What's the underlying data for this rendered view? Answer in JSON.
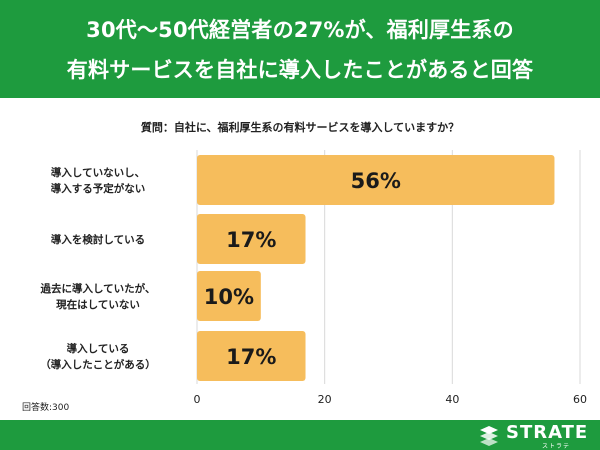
{
  "header": {
    "line1": "30代〜50代経営者の27%が、福利厚生系の",
    "line2": "有料サービスを自社に導入したことがあると回答"
  },
  "question": "質問：自社に、福利厚生系の有料サービスを導入していますか？",
  "note": "回答数:300",
  "brand": {
    "name": "STRATE",
    "sub": "ストラテ"
  },
  "colors": {
    "banner": "#1e9b3e",
    "bar": "#f6bd5c",
    "grid": "#d9d9d9",
    "text": "#222222"
  },
  "chart_data": {
    "type": "bar",
    "orientation": "horizontal",
    "categories": [
      [
        "導入していないし、",
        "導入する予定がない"
      ],
      [
        "導入を検討している"
      ],
      [
        "過去に導入していたが、",
        "現在はしていない"
      ],
      [
        "導入している",
        "（導入したことがある）"
      ]
    ],
    "values": [
      56,
      17,
      10,
      17
    ],
    "value_labels": [
      "56%",
      "17%",
      "10%",
      "17%"
    ],
    "xlim": [
      0,
      60
    ],
    "xticks": [
      0,
      20,
      40,
      60
    ],
    "grid": true
  }
}
